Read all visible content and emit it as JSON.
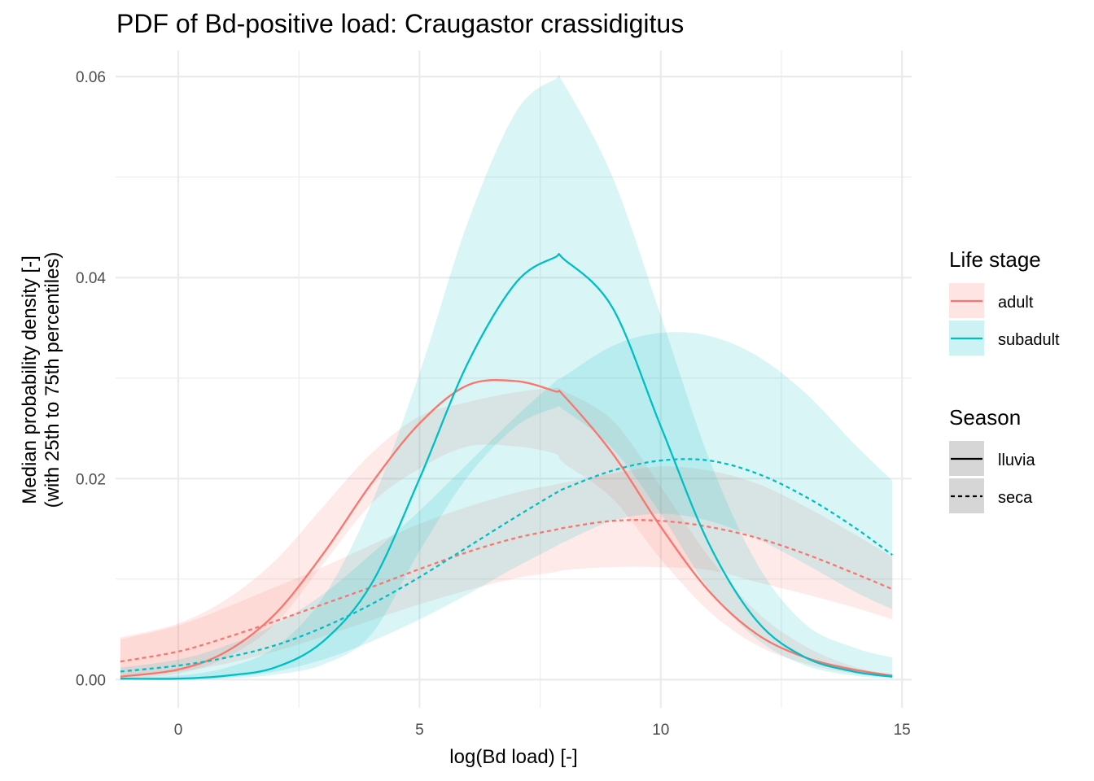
{
  "chart_data": {
    "type": "line",
    "title": "PDF of Bd-positive load: Craugastor crassidigitus",
    "xlabel": "log(Bd load) [-]",
    "ylabel_lines": [
      "Median probability density [-]",
      "(with 25th to 75th percentiles)"
    ],
    "xlim": [
      -1.3,
      15.2
    ],
    "ylim": [
      -0.0028,
      0.0626
    ],
    "x_ticks": [
      0,
      5,
      10,
      15
    ],
    "x_tick_labels": [
      "0",
      "5",
      "10",
      "15"
    ],
    "y_ticks": [
      0,
      0.02,
      0.04,
      0.06
    ],
    "y_tick_labels": [
      "0.00",
      "0.02",
      "0.04",
      "0.06"
    ],
    "grid": true,
    "legend_position": "right",
    "legends": {
      "life_stage": {
        "title": "Life stage",
        "entries": [
          {
            "label": "adult",
            "color": "#F8766D"
          },
          {
            "label": "subadult",
            "color": "#00BFC4"
          }
        ]
      },
      "season": {
        "title": "Season",
        "entries": [
          {
            "label": "lluvia",
            "linetype": "solid"
          },
          {
            "label": "seca",
            "linetype": "dashed"
          }
        ]
      }
    },
    "x": [
      -1.2,
      0,
      1,
      2,
      3,
      4,
      5,
      6,
      7,
      7.8,
      8,
      9,
      10,
      11,
      12,
      13,
      14,
      14.8
    ],
    "series": [
      {
        "name": "adult · lluvia",
        "color": "#F8766D",
        "linetype": "solid",
        "median": [
          0.0003,
          0.001,
          0.0028,
          0.0065,
          0.0125,
          0.0195,
          0.0255,
          0.0293,
          0.0297,
          0.0287,
          0.0282,
          0.0225,
          0.0152,
          0.0088,
          0.0045,
          0.0022,
          0.001,
          0.0004
        ],
        "q25": [
          0.0001,
          0.0006,
          0.0022,
          0.0055,
          0.0115,
          0.0175,
          0.021,
          0.0232,
          0.0232,
          0.0225,
          0.0215,
          0.018,
          0.012,
          0.0068,
          0.0034,
          0.0016,
          0.0006,
          0.0002
        ],
        "q75": [
          0.0042,
          0.0056,
          0.008,
          0.0118,
          0.0172,
          0.0225,
          0.0262,
          0.0276,
          0.0286,
          0.029,
          0.0287,
          0.0258,
          0.0192,
          0.0122,
          0.0067,
          0.0033,
          0.0013,
          0.0005
        ]
      },
      {
        "name": "adult · seca",
        "color": "#F8766D",
        "linetype": "dashed",
        "median": [
          0.0018,
          0.0028,
          0.0042,
          0.0058,
          0.0075,
          0.0092,
          0.011,
          0.0127,
          0.0141,
          0.0149,
          0.0151,
          0.0158,
          0.0158,
          0.0152,
          0.0141,
          0.0125,
          0.0106,
          0.009
        ],
        "q25": [
          0.0004,
          0.0008,
          0.0016,
          0.0028,
          0.0043,
          0.0059,
          0.0075,
          0.0089,
          0.0101,
          0.0107,
          0.0109,
          0.0112,
          0.0112,
          0.0109,
          0.0097,
          0.0085,
          0.0072,
          0.006
        ],
        "q75": [
          0.004,
          0.0054,
          0.0072,
          0.0092,
          0.0112,
          0.0134,
          0.0155,
          0.0172,
          0.0186,
          0.0194,
          0.0196,
          0.0205,
          0.0212,
          0.0208,
          0.0195,
          0.0172,
          0.0145,
          0.0122
        ]
      },
      {
        "name": "subadult · lluvia",
        "color": "#00BFC4",
        "linetype": "solid",
        "median": [
          0.0001,
          0.0001,
          0.0004,
          0.0012,
          0.0038,
          0.0095,
          0.02,
          0.0315,
          0.0395,
          0.042,
          0.0418,
          0.037,
          0.0252,
          0.0135,
          0.0058,
          0.0022,
          0.0008,
          0.0003
        ],
        "q25": [
          0.0,
          0.0,
          0.0001,
          0.0005,
          0.0015,
          0.0045,
          0.0128,
          0.0202,
          0.0252,
          0.027,
          0.0268,
          0.023,
          0.0165,
          0.009,
          0.004,
          0.0014,
          0.0004,
          0.0001
        ],
        "q75": [
          0.0002,
          0.0004,
          0.0012,
          0.0032,
          0.0082,
          0.0175,
          0.0305,
          0.0455,
          0.0565,
          0.0597,
          0.0592,
          0.05,
          0.0362,
          0.022,
          0.0115,
          0.0055,
          0.0032,
          0.0022
        ]
      },
      {
        "name": "subadult · seca",
        "color": "#00BFC4",
        "linetype": "dashed",
        "median": [
          0.0008,
          0.0014,
          0.0022,
          0.0034,
          0.0052,
          0.0075,
          0.0102,
          0.0132,
          0.0162,
          0.0185,
          0.019,
          0.0208,
          0.0218,
          0.0218,
          0.0205,
          0.0182,
          0.0152,
          0.0124
        ],
        "q25": [
          0.0,
          0.0,
          0.0002,
          0.0008,
          0.002,
          0.0038,
          0.006,
          0.0085,
          0.0112,
          0.0132,
          0.0137,
          0.0158,
          0.0165,
          0.0158,
          0.014,
          0.0115,
          0.0088,
          0.007
        ],
        "q75": [
          0.0012,
          0.002,
          0.0034,
          0.0055,
          0.0085,
          0.0125,
          0.0168,
          0.0215,
          0.0262,
          0.0296,
          0.0302,
          0.0332,
          0.0345,
          0.0342,
          0.0322,
          0.0285,
          0.0235,
          0.0198
        ]
      }
    ]
  }
}
